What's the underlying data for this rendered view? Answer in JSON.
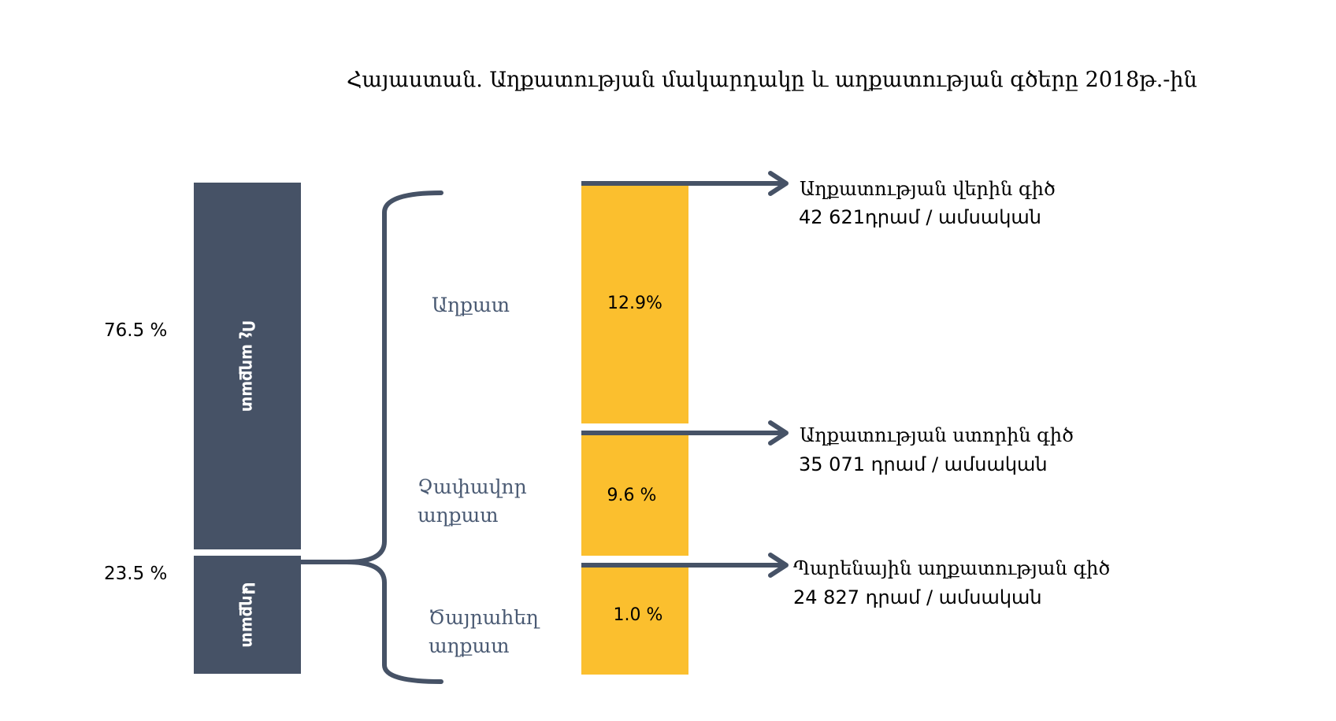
{
  "title": "Հայաստան. Աղքատության մակարդակը և աղքատության գծերը 2018թ.-ին",
  "left_column": {
    "non_poor": {
      "label": "Ոչ աղքատ",
      "percent_label": "76.5 %",
      "value": 76.5
    },
    "poor": {
      "label": "Աղքատ",
      "percent_label": "23.5 %",
      "value": 23.5
    }
  },
  "categories": {
    "poor": "Աղքատ",
    "moderate": [
      "Չափավոր",
      "աղքատ"
    ],
    "extreme": [
      "Ծայրահեղ",
      "աղքատ"
    ]
  },
  "right_column": {
    "poor_segment": {
      "label": "12.9%",
      "value": 12.9
    },
    "moderate_segment": {
      "label": "9.6 %",
      "value": 9.6
    },
    "extreme_segment": {
      "label": "1.0 %",
      "value": 1.0
    }
  },
  "poverty_lines": {
    "upper": {
      "label": "Աղքատության վերին գիծ",
      "value_text": "42 621դրամ / ամսական"
    },
    "lower": {
      "label": "Աղքատության ստորին գիծ",
      "value_text": "35 071 դրամ / ամսական"
    },
    "food": {
      "label": "Պարենային աղքատության գիծ",
      "value_text": "24 827 դրամ / ամսական"
    }
  },
  "colors": {
    "dark_bar": "#465266",
    "yellow_bar": "#fbbf2e",
    "connector": "#465266",
    "category_text": "#4a5a73"
  }
}
